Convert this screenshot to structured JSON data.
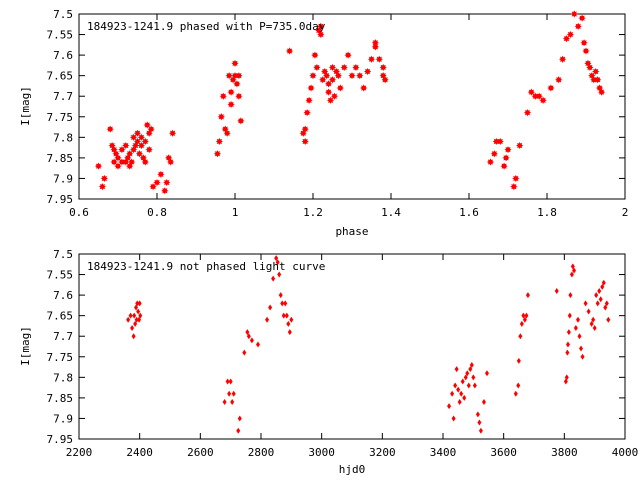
{
  "chart_data": [
    {
      "type": "scatter",
      "title": "184923-1241.9 phased with P=735.0day",
      "xlabel": "phase",
      "ylabel": "I[mag]",
      "xlim": [
        0.6,
        2.0
      ],
      "ylim": [
        7.95,
        7.5
      ],
      "y_inverted": true,
      "grid": false,
      "xticks": [
        "0.6",
        "0.8",
        "1",
        "1.2",
        "1.4",
        "1.6",
        "1.8",
        "2"
      ],
      "yticks": [
        "7.5",
        "7.55",
        "7.6",
        "7.65",
        "7.7",
        "7.75",
        "7.8",
        "7.85",
        "7.9",
        "7.95"
      ],
      "marker": "star",
      "color": "#ff0000",
      "points": [
        [
          0.65,
          7.87
        ],
        [
          0.66,
          7.92
        ],
        [
          0.665,
          7.9
        ],
        [
          0.68,
          7.78
        ],
        [
          0.685,
          7.82
        ],
        [
          0.69,
          7.83
        ],
        [
          0.69,
          7.86
        ],
        [
          0.695,
          7.84
        ],
        [
          0.7,
          7.85
        ],
        [
          0.7,
          7.87
        ],
        [
          0.71,
          7.83
        ],
        [
          0.71,
          7.86
        ],
        [
          0.72,
          7.86
        ],
        [
          0.72,
          7.82
        ],
        [
          0.725,
          7.85
        ],
        [
          0.73,
          7.84
        ],
        [
          0.73,
          7.87
        ],
        [
          0.735,
          7.86
        ],
        [
          0.74,
          7.8
        ],
        [
          0.74,
          7.83
        ],
        [
          0.745,
          7.82
        ],
        [
          0.75,
          7.79
        ],
        [
          0.75,
          7.81
        ],
        [
          0.755,
          7.84
        ],
        [
          0.76,
          7.8
        ],
        [
          0.76,
          7.82
        ],
        [
          0.765,
          7.85
        ],
        [
          0.77,
          7.81
        ],
        [
          0.77,
          7.86
        ],
        [
          0.775,
          7.77
        ],
        [
          0.78,
          7.79
        ],
        [
          0.78,
          7.83
        ],
        [
          0.785,
          7.78
        ],
        [
          0.79,
          7.92
        ],
        [
          0.8,
          7.91
        ],
        [
          0.81,
          7.89
        ],
        [
          0.82,
          7.93
        ],
        [
          0.825,
          7.91
        ],
        [
          0.83,
          7.85
        ],
        [
          0.835,
          7.86
        ],
        [
          0.84,
          7.79
        ],
        [
          0.955,
          7.84
        ],
        [
          0.96,
          7.81
        ],
        [
          0.965,
          7.75
        ],
        [
          0.97,
          7.7
        ],
        [
          0.975,
          7.78
        ],
        [
          0.98,
          7.79
        ],
        [
          0.985,
          7.65
        ],
        [
          0.99,
          7.69
        ],
        [
          0.99,
          7.72
        ],
        [
          0.995,
          7.66
        ],
        [
          1.0,
          7.65
        ],
        [
          1.0,
          7.62
        ],
        [
          1.005,
          7.67
        ],
        [
          1.01,
          7.7
        ],
        [
          1.01,
          7.65
        ],
        [
          1.015,
          7.76
        ],
        [
          1.14,
          7.59
        ],
        [
          1.175,
          7.79
        ],
        [
          1.18,
          7.78
        ],
        [
          1.18,
          7.81
        ],
        [
          1.185,
          7.74
        ],
        [
          1.19,
          7.71
        ],
        [
          1.195,
          7.68
        ],
        [
          1.2,
          7.65
        ],
        [
          1.205,
          7.6
        ],
        [
          1.21,
          7.63
        ],
        [
          1.215,
          7.54
        ],
        [
          1.22,
          7.53
        ],
        [
          1.22,
          7.55
        ],
        [
          1.225,
          7.66
        ],
        [
          1.23,
          7.64
        ],
        [
          1.235,
          7.65
        ],
        [
          1.24,
          7.67
        ],
        [
          1.24,
          7.69
        ],
        [
          1.245,
          7.71
        ],
        [
          1.25,
          7.63
        ],
        [
          1.25,
          7.66
        ],
        [
          1.255,
          7.7
        ],
        [
          1.26,
          7.64
        ],
        [
          1.265,
          7.65
        ],
        [
          1.27,
          7.68
        ],
        [
          1.28,
          7.63
        ],
        [
          1.29,
          7.6
        ],
        [
          1.3,
          7.65
        ],
        [
          1.31,
          7.63
        ],
        [
          1.32,
          7.65
        ],
        [
          1.33,
          7.68
        ],
        [
          1.34,
          7.64
        ],
        [
          1.35,
          7.61
        ],
        [
          1.36,
          7.58
        ],
        [
          1.36,
          7.57
        ],
        [
          1.37,
          7.61
        ],
        [
          1.38,
          7.63
        ],
        [
          1.38,
          7.65
        ],
        [
          1.385,
          7.66
        ],
        [
          1.655,
          7.86
        ],
        [
          1.665,
          7.84
        ],
        [
          1.67,
          7.81
        ],
        [
          1.68,
          7.81
        ],
        [
          1.69,
          7.87
        ],
        [
          1.695,
          7.85
        ],
        [
          1.7,
          7.83
        ],
        [
          1.715,
          7.92
        ],
        [
          1.72,
          7.9
        ],
        [
          1.73,
          7.82
        ],
        [
          1.75,
          7.74
        ],
        [
          1.76,
          7.69
        ],
        [
          1.77,
          7.7
        ],
        [
          1.78,
          7.7
        ],
        [
          1.79,
          7.71
        ],
        [
          1.81,
          7.68
        ],
        [
          1.83,
          7.66
        ],
        [
          1.84,
          7.61
        ],
        [
          1.85,
          7.56
        ],
        [
          1.86,
          7.55
        ],
        [
          1.87,
          7.5
        ],
        [
          1.88,
          7.53
        ],
        [
          1.89,
          7.51
        ],
        [
          1.895,
          7.57
        ],
        [
          1.9,
          7.59
        ],
        [
          1.905,
          7.62
        ],
        [
          1.91,
          7.63
        ],
        [
          1.915,
          7.65
        ],
        [
          1.92,
          7.66
        ],
        [
          1.925,
          7.64
        ],
        [
          1.93,
          7.66
        ],
        [
          1.935,
          7.68
        ],
        [
          1.94,
          7.69
        ]
      ]
    },
    {
      "type": "scatter",
      "title": "184923-1241.9 not phased light curve",
      "xlabel": "hjd0",
      "ylabel": "I[mag]",
      "xlim": [
        2200,
        4000
      ],
      "ylim": [
        7.95,
        7.5
      ],
      "y_inverted": true,
      "grid": false,
      "xticks": [
        "2200",
        "2400",
        "2600",
        "2800",
        "3000",
        "3200",
        "3400",
        "3600",
        "3800",
        "4000"
      ],
      "yticks": [
        "7.5",
        "7.55",
        "7.6",
        "7.65",
        "7.7",
        "7.75",
        "7.8",
        "7.85",
        "7.9",
        "7.95"
      ],
      "marker": "diamond",
      "color": "#ff0000",
      "points": [
        [
          2362,
          7.66
        ],
        [
          2370,
          7.65
        ],
        [
          2375,
          7.68
        ],
        [
          2380,
          7.7
        ],
        [
          2382,
          7.65
        ],
        [
          2385,
          7.67
        ],
        [
          2388,
          7.63
        ],
        [
          2390,
          7.66
        ],
        [
          2392,
          7.62
        ],
        [
          2395,
          7.64
        ],
        [
          2398,
          7.66
        ],
        [
          2400,
          7.62
        ],
        [
          2402,
          7.65
        ],
        [
          2680,
          7.86
        ],
        [
          2690,
          7.81
        ],
        [
          2695,
          7.84
        ],
        [
          2700,
          7.81
        ],
        [
          2705,
          7.86
        ],
        [
          2710,
          7.84
        ],
        [
          2725,
          7.93
        ],
        [
          2730,
          7.9
        ],
        [
          2745,
          7.74
        ],
        [
          2755,
          7.69
        ],
        [
          2760,
          7.7
        ],
        [
          2770,
          7.71
        ],
        [
          2790,
          7.72
        ],
        [
          2820,
          7.66
        ],
        [
          2830,
          7.63
        ],
        [
          2840,
          7.56
        ],
        [
          2850,
          7.51
        ],
        [
          2855,
          7.52
        ],
        [
          2860,
          7.55
        ],
        [
          2865,
          7.6
        ],
        [
          2870,
          7.62
        ],
        [
          2875,
          7.65
        ],
        [
          2880,
          7.62
        ],
        [
          2885,
          7.65
        ],
        [
          2890,
          7.67
        ],
        [
          2895,
          7.69
        ],
        [
          2900,
          7.66
        ],
        [
          3420,
          7.87
        ],
        [
          3430,
          7.84
        ],
        [
          3435,
          7.9
        ],
        [
          3440,
          7.82
        ],
        [
          3445,
          7.78
        ],
        [
          3450,
          7.83
        ],
        [
          3455,
          7.86
        ],
        [
          3460,
          7.84
        ],
        [
          3465,
          7.81
        ],
        [
          3470,
          7.85
        ],
        [
          3475,
          7.8
        ],
        [
          3480,
          7.79
        ],
        [
          3485,
          7.82
        ],
        [
          3490,
          7.78
        ],
        [
          3495,
          7.77
        ],
        [
          3500,
          7.8
        ],
        [
          3505,
          7.82
        ],
        [
          3515,
          7.89
        ],
        [
          3520,
          7.91
        ],
        [
          3525,
          7.93
        ],
        [
          3535,
          7.86
        ],
        [
          3545,
          7.79
        ],
        [
          3640,
          7.84
        ],
        [
          3648,
          7.82
        ],
        [
          3650,
          7.76
        ],
        [
          3655,
          7.7
        ],
        [
          3660,
          7.67
        ],
        [
          3665,
          7.65
        ],
        [
          3670,
          7.66
        ],
        [
          3675,
          7.65
        ],
        [
          3680,
          7.6
        ],
        [
          3775,
          7.59
        ],
        [
          3805,
          7.81
        ],
        [
          3808,
          7.8
        ],
        [
          3810,
          7.74
        ],
        [
          3812,
          7.72
        ],
        [
          3815,
          7.69
        ],
        [
          3818,
          7.65
        ],
        [
          3820,
          7.6
        ],
        [
          3825,
          7.55
        ],
        [
          3828,
          7.53
        ],
        [
          3832,
          7.54
        ],
        [
          3838,
          7.68
        ],
        [
          3845,
          7.66
        ],
        [
          3850,
          7.7
        ],
        [
          3855,
          7.73
        ],
        [
          3860,
          7.75
        ],
        [
          3870,
          7.62
        ],
        [
          3880,
          7.64
        ],
        [
          3890,
          7.67
        ],
        [
          3895,
          7.66
        ],
        [
          3900,
          7.68
        ],
        [
          3905,
          7.6
        ],
        [
          3910,
          7.62
        ],
        [
          3915,
          7.59
        ],
        [
          3920,
          7.61
        ],
        [
          3925,
          7.58
        ],
        [
          3930,
          7.57
        ],
        [
          3935,
          7.63
        ],
        [
          3940,
          7.62
        ],
        [
          3945,
          7.66
        ]
      ]
    }
  ]
}
